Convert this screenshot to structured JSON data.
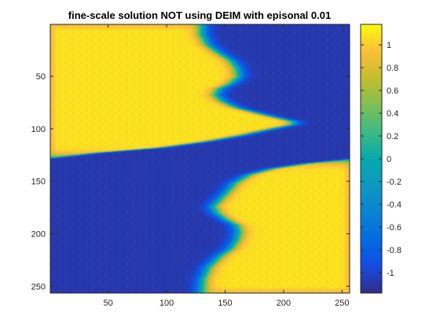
{
  "chart_data": {
    "type": "heatmap",
    "title": "fine-scale solution NOT using DEIM with episonal 0.01",
    "xlabel": "",
    "ylabel": "",
    "xlim": [
      1,
      256
    ],
    "ylim": [
      1,
      256
    ],
    "y_direction": "reversed",
    "grid": false,
    "colormap": "parula",
    "xticks": [
      50,
      100,
      150,
      200,
      250
    ],
    "yticks": [
      50,
      100,
      150,
      200,
      250
    ],
    "colorbar": {
      "range": [
        -1.18,
        1.18
      ],
      "ticks": [
        1,
        0.8,
        0.6,
        0.4,
        0.2,
        0,
        -0.2,
        -0.4,
        -0.6,
        -0.8,
        -1
      ],
      "labels": [
        "1",
        "0.8",
        "0.6",
        "0.4",
        "0.2",
        "0",
        "-0.2",
        "-0.4",
        "-0.6",
        "-0.8",
        "-1"
      ]
    },
    "high_value": 1.1,
    "low_value": -1.1,
    "interface_boundary": {
      "description": "column index where field switches from high (left) to low (right) for rows above y=128, and low (left) to high (right) below",
      "upper_rows": [
        {
          "y": 1,
          "x": 130
        },
        {
          "y": 10,
          "x": 130
        },
        {
          "y": 20,
          "x": 135
        },
        {
          "y": 28,
          "x": 145
        },
        {
          "y": 35,
          "x": 155
        },
        {
          "y": 42,
          "x": 160
        },
        {
          "y": 50,
          "x": 162
        },
        {
          "y": 57,
          "x": 155
        },
        {
          "y": 62,
          "x": 145
        },
        {
          "y": 68,
          "x": 142
        },
        {
          "y": 74,
          "x": 148
        },
        {
          "y": 80,
          "x": 160
        },
        {
          "y": 87,
          "x": 185
        },
        {
          "y": 93,
          "x": 208
        },
        {
          "y": 96,
          "x": 208
        },
        {
          "y": 100,
          "x": 190
        },
        {
          "y": 106,
          "x": 165
        },
        {
          "y": 112,
          "x": 135
        },
        {
          "y": 118,
          "x": 95
        },
        {
          "y": 123,
          "x": 40
        },
        {
          "y": 128,
          "x": 1
        }
      ],
      "lower_rows": [
        {
          "y": 129,
          "x": 256
        },
        {
          "y": 133,
          "x": 220
        },
        {
          "y": 138,
          "x": 190
        },
        {
          "y": 144,
          "x": 170
        },
        {
          "y": 152,
          "x": 158
        },
        {
          "y": 160,
          "x": 152
        },
        {
          "y": 168,
          "x": 145
        },
        {
          "y": 174,
          "x": 140
        },
        {
          "y": 180,
          "x": 143
        },
        {
          "y": 186,
          "x": 150
        },
        {
          "y": 192,
          "x": 160
        },
        {
          "y": 198,
          "x": 162
        },
        {
          "y": 206,
          "x": 160
        },
        {
          "y": 214,
          "x": 155
        },
        {
          "y": 222,
          "x": 145
        },
        {
          "y": 232,
          "x": 136
        },
        {
          "y": 244,
          "x": 131
        },
        {
          "y": 256,
          "x": 130
        }
      ]
    }
  }
}
